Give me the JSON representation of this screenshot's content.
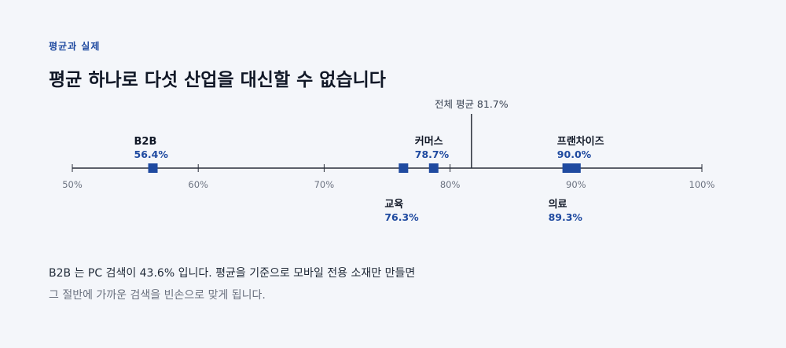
{
  "eyebrow": "평균과 실제",
  "headline": "평균 하나로 다섯 산업을 대신할 수 없습니다",
  "note_line1": "B2B 는 PC 검색이 43.6% 입니다. 평균을 기준으로 모바일 전용 소재만 만들면",
  "note_line2": "그 절반에 가까운 검색을 빈손으로 맞게 됩니다.",
  "colors": {
    "accent": "#1f4aa0",
    "axis": "#2a2f3a",
    "tick_text": "#6b7280"
  },
  "chart_data": {
    "type": "scatter",
    "xlim": [
      50,
      100
    ],
    "ticks": [
      {
        "value": 50,
        "label": "50%"
      },
      {
        "value": 60,
        "label": "60%"
      },
      {
        "value": 70,
        "label": "70%"
      },
      {
        "value": 80,
        "label": "80%"
      },
      {
        "value": 90,
        "label": "90%"
      },
      {
        "value": 100,
        "label": "100%"
      }
    ],
    "reference": {
      "value": 81.7,
      "label": "전체 평균 81.7%"
    },
    "points": [
      {
        "name": "B2B",
        "value": 56.4,
        "value_label": "56.4%",
        "label_side": "above"
      },
      {
        "name": "교육",
        "value": 76.3,
        "value_label": "76.3%",
        "label_side": "below"
      },
      {
        "name": "커머스",
        "value": 78.7,
        "value_label": "78.7%",
        "label_side": "above"
      },
      {
        "name": "의료",
        "value": 89.3,
        "value_label": "89.3%",
        "label_side": "below"
      },
      {
        "name": "프랜차이즈",
        "value": 90.0,
        "value_label": "90.0%",
        "label_side": "above"
      }
    ]
  }
}
